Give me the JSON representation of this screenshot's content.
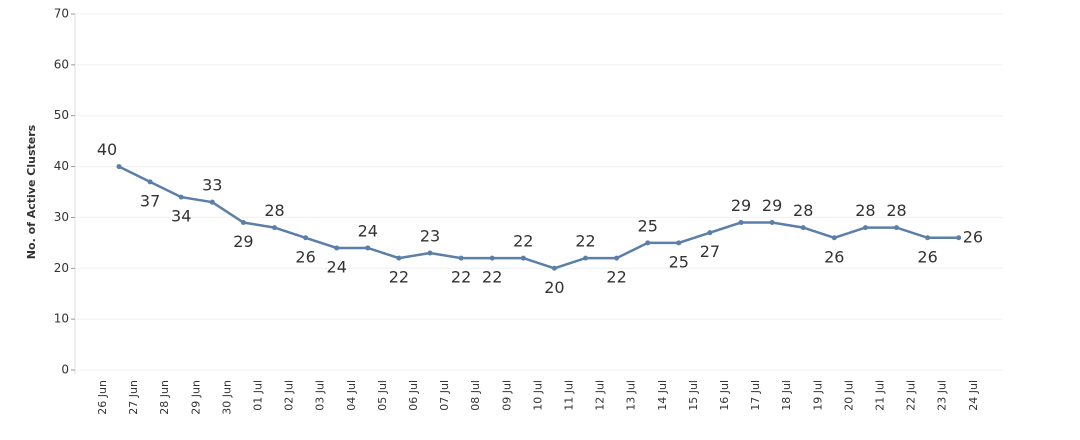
{
  "chart_data": {
    "type": "line",
    "y_label": "No. of Active Clusters",
    "categories": [
      "26 Jun",
      "27 Jun",
      "28 Jun",
      "29 Jun",
      "30 Jun",
      "01 Jul",
      "02 Jul",
      "03 Jul",
      "04 Jul",
      "05 Jul",
      "06 Jul",
      "07 Jul",
      "08 Jul",
      "09 Jul",
      "10 Jul",
      "11 Jul",
      "12 Jul",
      "13 Jul",
      "14 Jul",
      "15 Jul",
      "16 Jul",
      "17 Jul",
      "18 Jul",
      "19 Jul",
      "20 Jul",
      "21 Jul",
      "22 Jul",
      "23 Jul",
      "24 Jul"
    ],
    "values": [
      40,
      37,
      34,
      33,
      29,
      28,
      26,
      24,
      24,
      22,
      23,
      22,
      22,
      22,
      20,
      22,
      22,
      25,
      25,
      27,
      29,
      29,
      28,
      26,
      28,
      28,
      26,
      26,
      null
    ],
    "color": "#5b7fa8",
    "ylim": [
      0,
      70
    ],
    "yticks": [
      0,
      10,
      20,
      30,
      40,
      50,
      60,
      70
    ],
    "grid": true
  }
}
